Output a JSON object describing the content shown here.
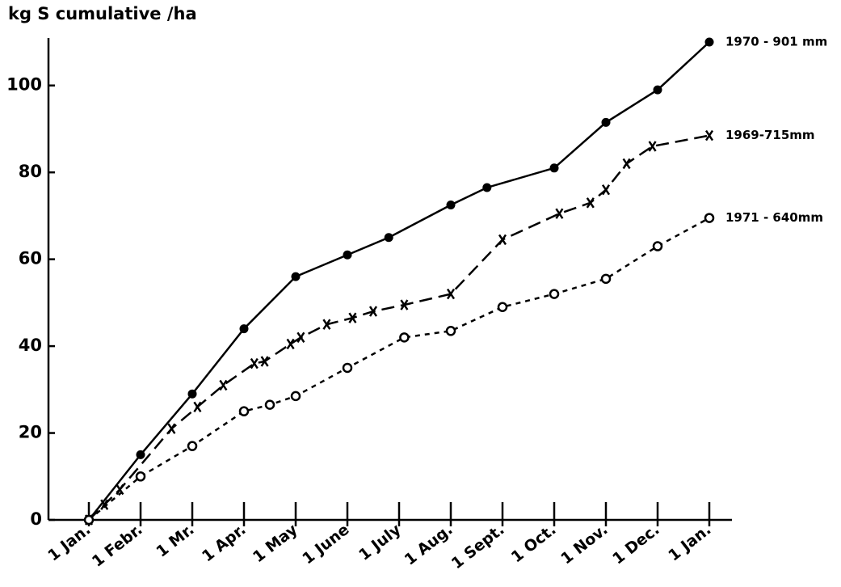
{
  "chart_data": {
    "type": "line",
    "y_label": "kg S cumulative /ha",
    "xlim": [
      0,
      12
    ],
    "xticks": [
      {
        "value": 0,
        "label": "1 Jan."
      },
      {
        "value": 1,
        "label": "1 Febr."
      },
      {
        "value": 2,
        "label": "1 Mr."
      },
      {
        "value": 3,
        "label": "1 Apr."
      },
      {
        "value": 4,
        "label": "1 May"
      },
      {
        "value": 5,
        "label": "1 June"
      },
      {
        "value": 6,
        "label": "1 July"
      },
      {
        "value": 7,
        "label": "1 Aug."
      },
      {
        "value": 8,
        "label": "1 Sept."
      },
      {
        "value": 9,
        "label": "1 Oct."
      },
      {
        "value": 10,
        "label": "1 Nov."
      },
      {
        "value": 11,
        "label": "1 Dec."
      },
      {
        "value": 12,
        "label": "1 Jan."
      }
    ],
    "ylim": [
      0,
      110
    ],
    "yticks": [
      0,
      20,
      40,
      60,
      80,
      100
    ],
    "series": [
      {
        "name": "1970 - 901 mm",
        "color": "#000000",
        "marker": "filled-circle",
        "linestyle": "solid",
        "x": [
          0,
          1,
          2,
          3,
          4,
          5,
          5.8,
          7,
          7.7,
          9,
          10,
          11,
          12
        ],
        "values": [
          0,
          15,
          29,
          44,
          56,
          61,
          65,
          72.5,
          76.5,
          81,
          91.5,
          99,
          110
        ]
      },
      {
        "name": "1969-715mm",
        "color": "#000000",
        "marker": "cross",
        "linestyle": "long-dash",
        "x": [
          0,
          0.3,
          0.6,
          1.6,
          2.1,
          2.6,
          3.2,
          3.4,
          3.9,
          4.1,
          4.6,
          5.1,
          5.5,
          6.1,
          7,
          8,
          9.1,
          9.7,
          10,
          10.4,
          10.9,
          12
        ],
        "values": [
          0,
          3.5,
          7,
          21,
          26,
          31,
          36,
          36.5,
          40.5,
          42,
          45,
          46.5,
          48,
          49.5,
          52,
          64.5,
          70.5,
          73,
          76,
          82,
          86,
          88.5
        ]
      },
      {
        "name": "1971 - 640mm",
        "color": "#000000",
        "marker": "open-circle",
        "linestyle": "short-dash",
        "x": [
          0,
          1,
          2,
          3,
          3.5,
          4,
          5,
          6.1,
          7,
          8,
          9,
          10,
          11,
          12
        ],
        "values": [
          0,
          10,
          17,
          25,
          26.5,
          28.5,
          35,
          42,
          43.5,
          49,
          52,
          55.5,
          63,
          69.5
        ]
      }
    ]
  }
}
